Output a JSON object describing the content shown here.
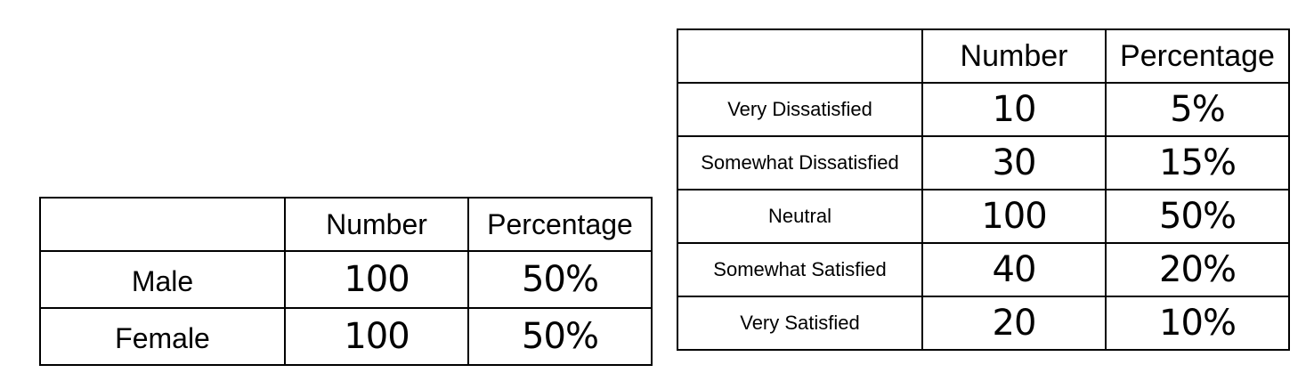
{
  "gender_table": {
    "headers": [
      "",
      "Number",
      "Percentage"
    ],
    "rows": [
      {
        "label": "Male",
        "number": "100",
        "percentage": "50%"
      },
      {
        "label": "Female",
        "number": "100",
        "percentage": "50%"
      }
    ]
  },
  "satisfaction_table": {
    "headers": [
      "",
      "Number",
      "Percentage"
    ],
    "rows": [
      {
        "label": "Very Dissatisfied",
        "number": "10",
        "percentage": "5%"
      },
      {
        "label": "Somewhat Dissatisfied",
        "number": "30",
        "percentage": "15%"
      },
      {
        "label": "Neutral",
        "number": "100",
        "percentage": "50%"
      },
      {
        "label": "Somewhat Satisfied",
        "number": "40",
        "percentage": "20%"
      },
      {
        "label": "Very Satisfied",
        "number": "20",
        "percentage": "10%"
      }
    ]
  }
}
